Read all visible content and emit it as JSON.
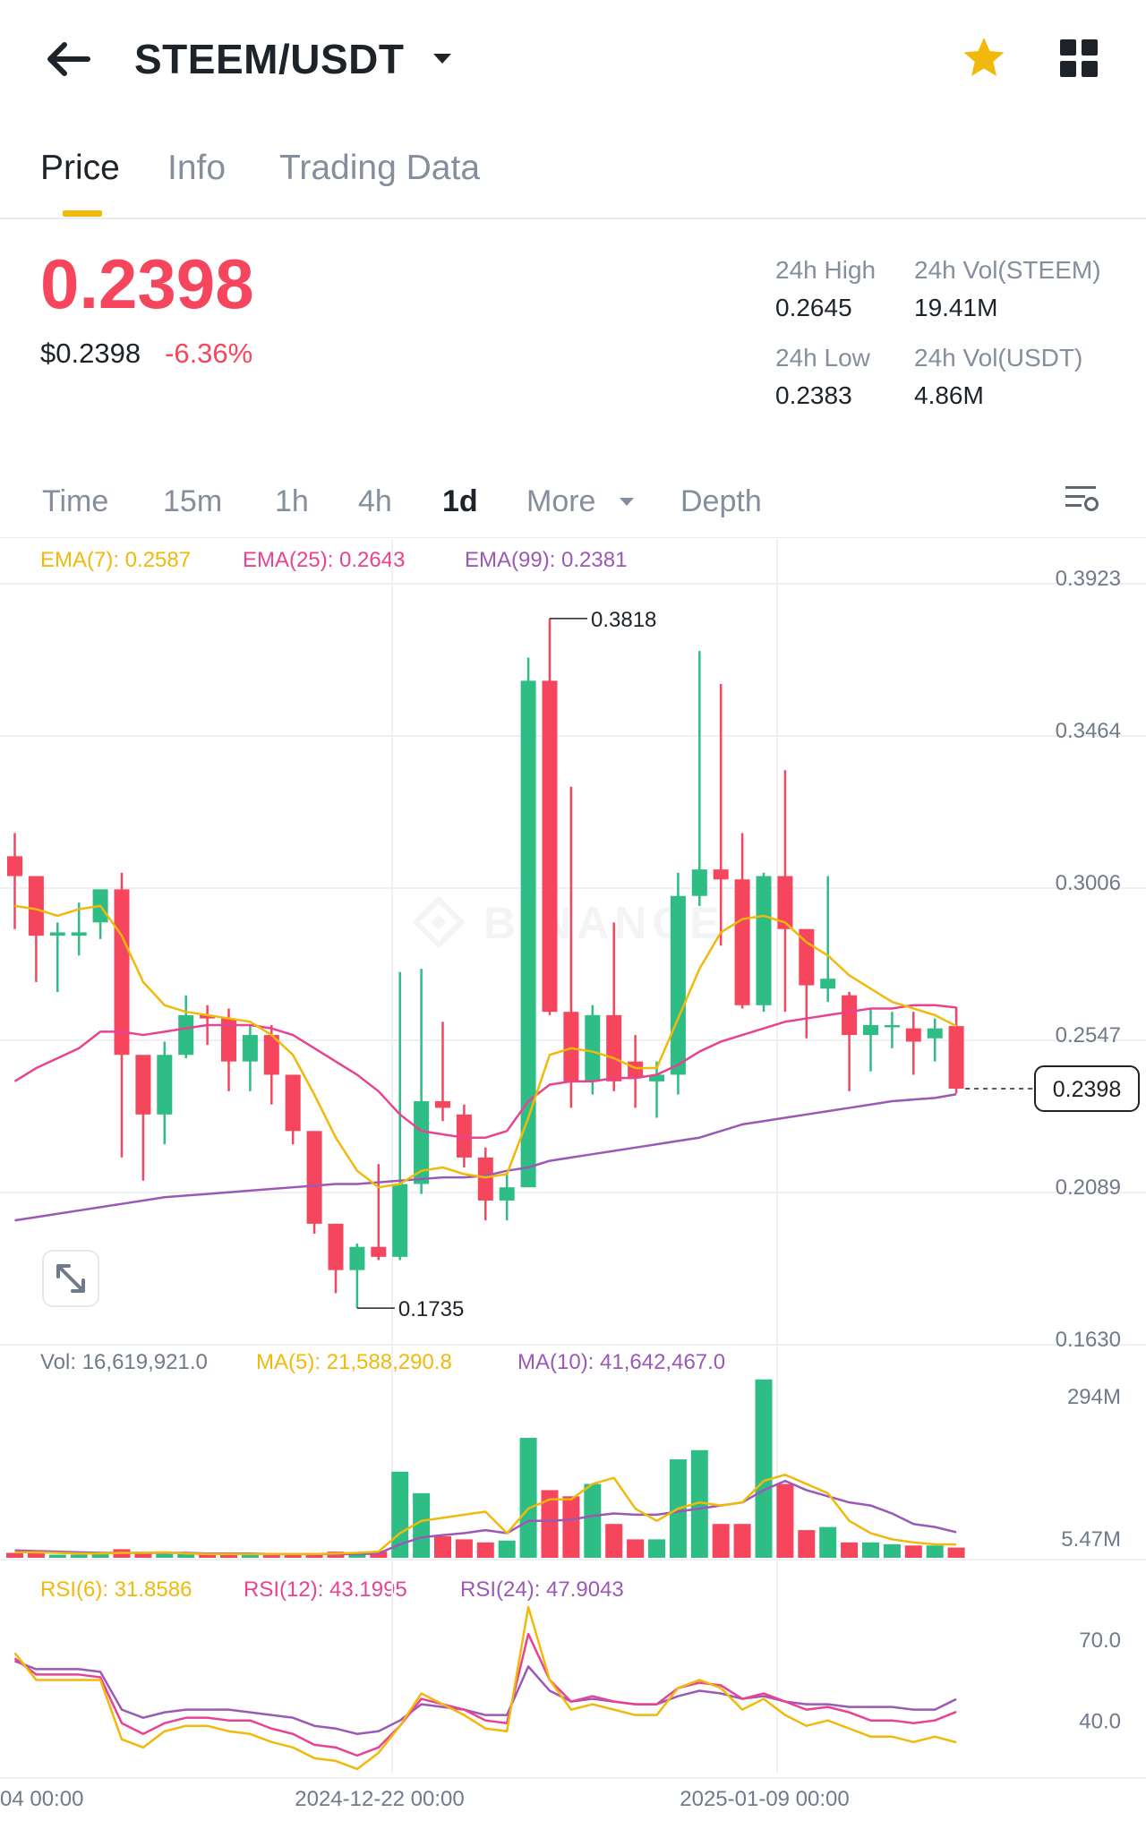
{
  "header": {
    "pair": "STEEM/USDT",
    "colors": {
      "up": "#2ebd85",
      "down": "#f6465d",
      "accent": "#f0b90b"
    }
  },
  "tabs": [
    {
      "label": "Price",
      "active": true
    },
    {
      "label": "Info",
      "active": false
    },
    {
      "label": "Trading Data",
      "active": false
    }
  ],
  "ticker": {
    "last": "0.2398",
    "usd": "$0.2398",
    "change": "-6.36%",
    "stats": {
      "high_label": "24h High",
      "high": "0.2645",
      "low_label": "24h Low",
      "low": "0.2383",
      "vol_base_label": "24h Vol(STEEM)",
      "vol_base": "19.41M",
      "vol_quote_label": "24h Vol(USDT)",
      "vol_quote": "4.86M"
    }
  },
  "timeframes": {
    "time": "Time",
    "m15": "15m",
    "h1": "1h",
    "h4": "4h",
    "d1": "1d",
    "more": "More",
    "depth": "Depth",
    "active": "1d"
  },
  "indicators": {
    "ema7": "EMA(7): 0.2587",
    "ema25": "EMA(25): 0.2643",
    "ema99": "EMA(99): 0.2381",
    "vol": "Vol: 16,619,921.0",
    "ma5": "MA(5): 21,588,290.8",
    "ma10": "MA(10): 41,642,467.0",
    "rsi6": "RSI(6): 31.8586",
    "rsi12": "RSI(12): 43.1995",
    "rsi24": "RSI(24): 47.9043"
  },
  "chart_data": [
    {
      "type": "candlestick",
      "price_axis": [
        "0.3923",
        "0.3464",
        "0.3006",
        "0.2547",
        "0.2089",
        "0.1630"
      ],
      "ylim": [
        0.163,
        0.3923
      ],
      "high_marker": "0.3818",
      "low_marker": "0.1735",
      "last_price_tag": "0.2398",
      "x_labels": [
        "04 00:00",
        "2024-12-22 00:00",
        "2025-01-09 00:00"
      ],
      "candles": [
        {
          "o": 0.31,
          "h": 0.317,
          "l": 0.288,
          "c": 0.304
        },
        {
          "o": 0.304,
          "h": 0.304,
          "l": 0.272,
          "c": 0.286
        },
        {
          "o": 0.286,
          "h": 0.29,
          "l": 0.269,
          "c": 0.287
        },
        {
          "o": 0.286,
          "h": 0.296,
          "l": 0.28,
          "c": 0.287
        },
        {
          "o": 0.29,
          "h": 0.3,
          "l": 0.285,
          "c": 0.3
        },
        {
          "o": 0.3,
          "h": 0.305,
          "l": 0.219,
          "c": 0.25
        },
        {
          "o": 0.25,
          "h": 0.25,
          "l": 0.212,
          "c": 0.232
        },
        {
          "o": 0.232,
          "h": 0.254,
          "l": 0.223,
          "c": 0.25
        },
        {
          "o": 0.25,
          "h": 0.268,
          "l": 0.249,
          "c": 0.262
        },
        {
          "o": 0.262,
          "h": 0.265,
          "l": 0.253,
          "c": 0.261
        },
        {
          "o": 0.261,
          "h": 0.264,
          "l": 0.239,
          "c": 0.248
        },
        {
          "o": 0.248,
          "h": 0.259,
          "l": 0.239,
          "c": 0.256
        },
        {
          "o": 0.256,
          "h": 0.259,
          "l": 0.235,
          "c": 0.244
        },
        {
          "o": 0.244,
          "h": 0.244,
          "l": 0.223,
          "c": 0.227
        },
        {
          "o": 0.227,
          "h": 0.227,
          "l": 0.196,
          "c": 0.199
        },
        {
          "o": 0.199,
          "h": 0.199,
          "l": 0.178,
          "c": 0.185
        },
        {
          "o": 0.185,
          "h": 0.193,
          "l": 0.1735,
          "c": 0.192
        },
        {
          "o": 0.192,
          "h": 0.217,
          "l": 0.188,
          "c": 0.189
        },
        {
          "o": 0.189,
          "h": 0.275,
          "l": 0.188,
          "c": 0.211
        },
        {
          "o": 0.211,
          "h": 0.276,
          "l": 0.208,
          "c": 0.236
        },
        {
          "o": 0.236,
          "h": 0.26,
          "l": 0.23,
          "c": 0.234
        },
        {
          "o": 0.232,
          "h": 0.235,
          "l": 0.216,
          "c": 0.219
        },
        {
          "o": 0.219,
          "h": 0.222,
          "l": 0.2,
          "c": 0.206
        },
        {
          "o": 0.206,
          "h": 0.214,
          "l": 0.2,
          "c": 0.21
        },
        {
          "o": 0.21,
          "h": 0.37,
          "l": 0.21,
          "c": 0.363
        },
        {
          "o": 0.363,
          "h": 0.3818,
          "l": 0.262,
          "c": 0.263
        },
        {
          "o": 0.263,
          "h": 0.331,
          "l": 0.234,
          "c": 0.242
        },
        {
          "o": 0.242,
          "h": 0.265,
          "l": 0.238,
          "c": 0.262
        },
        {
          "o": 0.262,
          "h": 0.29,
          "l": 0.239,
          "c": 0.242
        },
        {
          "o": 0.248,
          "h": 0.256,
          "l": 0.234,
          "c": 0.243
        },
        {
          "o": 0.242,
          "h": 0.248,
          "l": 0.231,
          "c": 0.244
        },
        {
          "o": 0.244,
          "h": 0.305,
          "l": 0.238,
          "c": 0.298
        },
        {
          "o": 0.298,
          "h": 0.372,
          "l": 0.295,
          "c": 0.306
        },
        {
          "o": 0.306,
          "h": 0.362,
          "l": 0.283,
          "c": 0.303
        },
        {
          "o": 0.303,
          "h": 0.317,
          "l": 0.264,
          "c": 0.265
        },
        {
          "o": 0.265,
          "h": 0.305,
          "l": 0.263,
          "c": 0.304
        },
        {
          "o": 0.304,
          "h": 0.336,
          "l": 0.263,
          "c": 0.288
        },
        {
          "o": 0.288,
          "h": 0.288,
          "l": 0.255,
          "c": 0.271
        },
        {
          "o": 0.27,
          "h": 0.304,
          "l": 0.266,
          "c": 0.273
        },
        {
          "o": 0.268,
          "h": 0.269,
          "l": 0.239,
          "c": 0.256
        },
        {
          "o": 0.256,
          "h": 0.264,
          "l": 0.245,
          "c": 0.259
        },
        {
          "o": 0.259,
          "h": 0.263,
          "l": 0.252,
          "c": 0.259
        },
        {
          "o": 0.258,
          "h": 0.263,
          "l": 0.244,
          "c": 0.254
        },
        {
          "o": 0.255,
          "h": 0.261,
          "l": 0.248,
          "c": 0.258
        },
        {
          "o": 0.2587,
          "h": 0.2645,
          "l": 0.2383,
          "c": 0.2398
        }
      ],
      "ema7": [
        0.295,
        0.294,
        0.292,
        0.294,
        0.295,
        0.286,
        0.272,
        0.265,
        0.263,
        0.262,
        0.261,
        0.26,
        0.256,
        0.25,
        0.238,
        0.225,
        0.215,
        0.21,
        0.211,
        0.215,
        0.216,
        0.214,
        0.213,
        0.214,
        0.231,
        0.25,
        0.252,
        0.251,
        0.249,
        0.246,
        0.246,
        0.261,
        0.276,
        0.287,
        0.291,
        0.292,
        0.29,
        0.284,
        0.28,
        0.274,
        0.27,
        0.266,
        0.264,
        0.262,
        0.2587
      ],
      "ema25": [
        0.242,
        0.246,
        0.249,
        0.252,
        0.257,
        0.257,
        0.256,
        0.257,
        0.258,
        0.259,
        0.259,
        0.259,
        0.258,
        0.256,
        0.252,
        0.248,
        0.244,
        0.239,
        0.232,
        0.227,
        0.226,
        0.225,
        0.225,
        0.227,
        0.236,
        0.241,
        0.242,
        0.242,
        0.243,
        0.243,
        0.244,
        0.247,
        0.251,
        0.254,
        0.256,
        0.258,
        0.26,
        0.261,
        0.262,
        0.263,
        0.264,
        0.264,
        0.265,
        0.265,
        0.2643
      ],
      "ema99": [
        0.2,
        0.201,
        0.202,
        0.203,
        0.204,
        0.205,
        0.206,
        0.207,
        0.2075,
        0.208,
        0.2085,
        0.209,
        0.2095,
        0.21,
        0.2105,
        0.211,
        0.211,
        0.2115,
        0.212,
        0.2125,
        0.213,
        0.213,
        0.2135,
        0.215,
        0.216,
        0.218,
        0.219,
        0.22,
        0.221,
        0.222,
        0.223,
        0.224,
        0.225,
        0.227,
        0.229,
        0.23,
        0.231,
        0.232,
        0.233,
        0.234,
        0.235,
        0.236,
        0.2365,
        0.237,
        0.2381
      ]
    },
    {
      "type": "bar",
      "volume_axis": [
        "294M",
        "5.47M"
      ],
      "ylim": [
        0,
        294
      ],
      "unit": "M",
      "volumes": [
        8,
        10,
        5,
        5,
        6,
        14,
        8,
        6,
        6,
        5,
        5,
        6,
        5,
        5,
        7,
        10,
        8,
        10,
        140,
        105,
        35,
        30,
        25,
        28,
        195,
        110,
        100,
        120,
        55,
        30,
        30,
        160,
        175,
        55,
        55,
        290,
        120,
        45,
        50,
        25,
        25,
        22,
        20,
        20,
        16.6
      ],
      "ma5": [
        9,
        9,
        8,
        7,
        7,
        8,
        8,
        9,
        7,
        6,
        6,
        6,
        6,
        6,
        6,
        7,
        8,
        10,
        40,
        60,
        65,
        70,
        75,
        40,
        80,
        95,
        95,
        120,
        130,
        80,
        60,
        80,
        90,
        85,
        90,
        125,
        135,
        120,
        105,
        60,
        40,
        30,
        25,
        22,
        21.6
      ],
      "ma10": [
        12,
        11,
        10,
        9,
        8,
        8,
        8,
        8,
        8,
        7,
        7,
        7,
        6,
        6,
        6,
        6,
        6,
        7,
        22,
        33,
        37,
        40,
        45,
        40,
        60,
        60,
        62,
        68,
        72,
        70,
        70,
        75,
        80,
        85,
        90,
        110,
        125,
        110,
        100,
        90,
        85,
        72,
        55,
        50,
        41.6
      ]
    },
    {
      "type": "line",
      "rsi_axis": [
        "70.0",
        "40.0"
      ],
      "ylim": [
        20,
        85
      ],
      "rsi6": [
        65,
        55,
        55,
        55,
        55,
        33,
        30,
        36,
        38,
        38,
        36,
        35,
        32,
        30,
        26,
        25,
        22,
        28,
        38,
        50,
        46,
        42,
        37,
        36,
        82,
        55,
        44,
        46,
        44,
        42,
        42,
        52,
        55,
        52,
        44,
        48,
        42,
        38,
        40,
        37,
        34,
        34,
        32,
        34,
        31.9
      ],
      "rsi12": [
        63,
        57,
        57,
        57,
        56,
        39,
        35,
        39,
        41,
        41,
        40,
        40,
        37,
        35,
        31,
        30,
        27,
        30,
        38,
        48,
        46,
        44,
        40,
        39,
        72,
        55,
        47,
        49,
        47,
        46,
        46,
        52,
        54,
        53,
        48,
        50,
        47,
        44,
        45,
        43,
        40,
        40,
        39,
        40,
        43.2
      ],
      "rsi24": [
        62,
        59,
        59,
        59,
        58,
        44,
        41,
        43,
        44,
        44,
        44,
        43,
        42,
        41,
        38,
        37,
        35,
        36,
        40,
        46,
        45,
        44,
        42,
        42,
        60,
        51,
        47,
        48,
        47,
        46,
        46,
        49,
        51,
        50,
        48,
        49,
        47,
        46,
        46,
        45,
        45,
        45,
        44,
        44,
        47.9
      ]
    }
  ]
}
